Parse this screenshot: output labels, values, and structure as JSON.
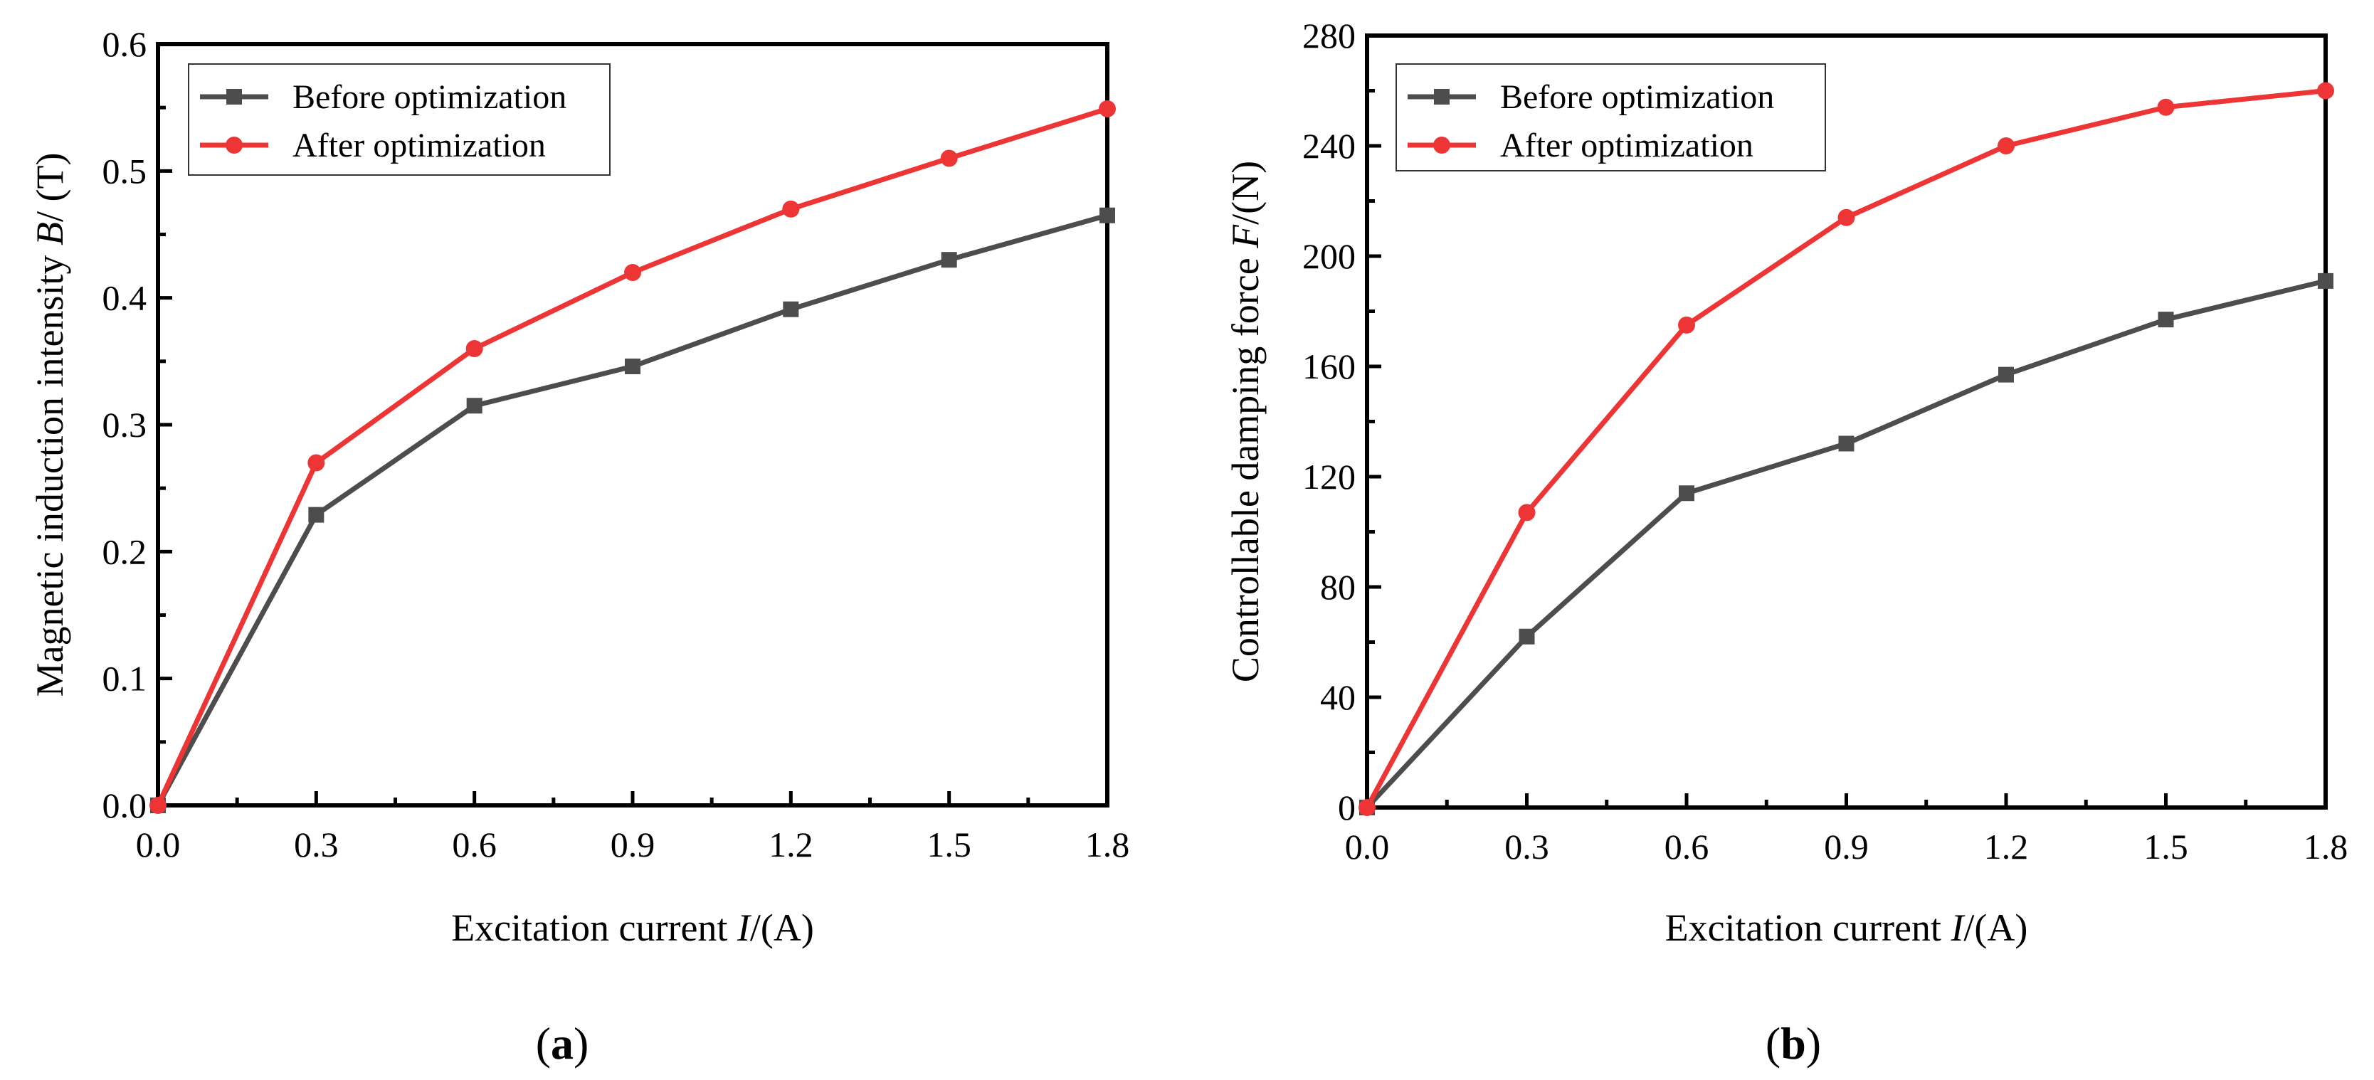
{
  "colors": {
    "before": "#4d4d4d",
    "after": "#ee3535",
    "axis": "#000000"
  },
  "chart_data": [
    {
      "type": "line",
      "panel_label": {
        "open": "(",
        "letter": "a",
        "close": ")"
      },
      "title": "",
      "xlabel": {
        "prefix": "Excitation current ",
        "var": "I",
        "suffix": "/(A)"
      },
      "ylabel": {
        "prefix": "Magnetic induction intensity ",
        "var": "B",
        "suffix": "/ (T)"
      },
      "xlim": [
        0,
        1.8
      ],
      "ylim": [
        0,
        0.6
      ],
      "xticks": [
        "0.0",
        "0.3",
        "0.6",
        "0.9",
        "1.2",
        "1.5",
        "1.8"
      ],
      "yticks": [
        "0.0",
        "0.1",
        "0.2",
        "0.3",
        "0.4",
        "0.5",
        "0.6"
      ],
      "x": [
        0,
        0.3,
        0.6,
        0.9,
        1.2,
        1.5,
        1.8
      ],
      "legend_position": "top-left",
      "series": [
        {
          "name": "Before optimization",
          "marker": "square",
          "values": [
            0,
            0.229,
            0.315,
            0.346,
            0.391,
            0.43,
            0.465
          ]
        },
        {
          "name": "After optimization",
          "marker": "circle",
          "values": [
            0,
            0.27,
            0.36,
            0.42,
            0.47,
            0.51,
            0.549
          ]
        }
      ]
    },
    {
      "type": "line",
      "panel_label": {
        "open": "(",
        "letter": "b",
        "close": ")"
      },
      "title": "",
      "xlabel": {
        "prefix": "Excitation current ",
        "var": "I",
        "suffix": "/(A)"
      },
      "ylabel": {
        "prefix": "Controllable damping force ",
        "var": "F",
        "suffix": "/(N)"
      },
      "xlim": [
        0,
        1.8
      ],
      "ylim": [
        0,
        280
      ],
      "xticks": [
        "0.0",
        "0.3",
        "0.6",
        "0.9",
        "1.2",
        "1.5",
        "1.8"
      ],
      "yticks": [
        "0",
        "40",
        "80",
        "120",
        "160",
        "200",
        "240",
        "280"
      ],
      "x": [
        0,
        0.3,
        0.6,
        0.9,
        1.2,
        1.5,
        1.8
      ],
      "legend_position": "top-left",
      "series": [
        {
          "name": "Before optimization",
          "marker": "square",
          "values": [
            0,
            62,
            114,
            132,
            157,
            177,
            191
          ]
        },
        {
          "name": "After optimization",
          "marker": "circle",
          "values": [
            0,
            107,
            175,
            214,
            240,
            254,
            260
          ]
        }
      ]
    }
  ]
}
